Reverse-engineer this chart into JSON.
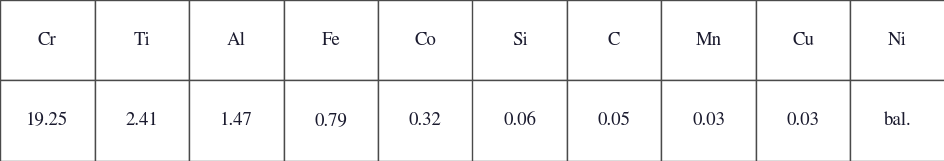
{
  "columns": [
    "Cr",
    "Ti",
    "Al",
    "Fe",
    "Co",
    "Si",
    "C",
    "Mn",
    "Cu",
    "Ni"
  ],
  "values": [
    "19.25",
    "2.41",
    "1.47",
    "0.79",
    "0.32",
    "0.06",
    "0.05",
    "0.03",
    "0.03",
    "bal."
  ],
  "background_color": "#ffffff",
  "border_color": "#4a4a4a",
  "text_color": "#1a1a2e",
  "header_fontsize": 13.5,
  "value_fontsize": 13.5,
  "font_family": "STIXGeneral"
}
